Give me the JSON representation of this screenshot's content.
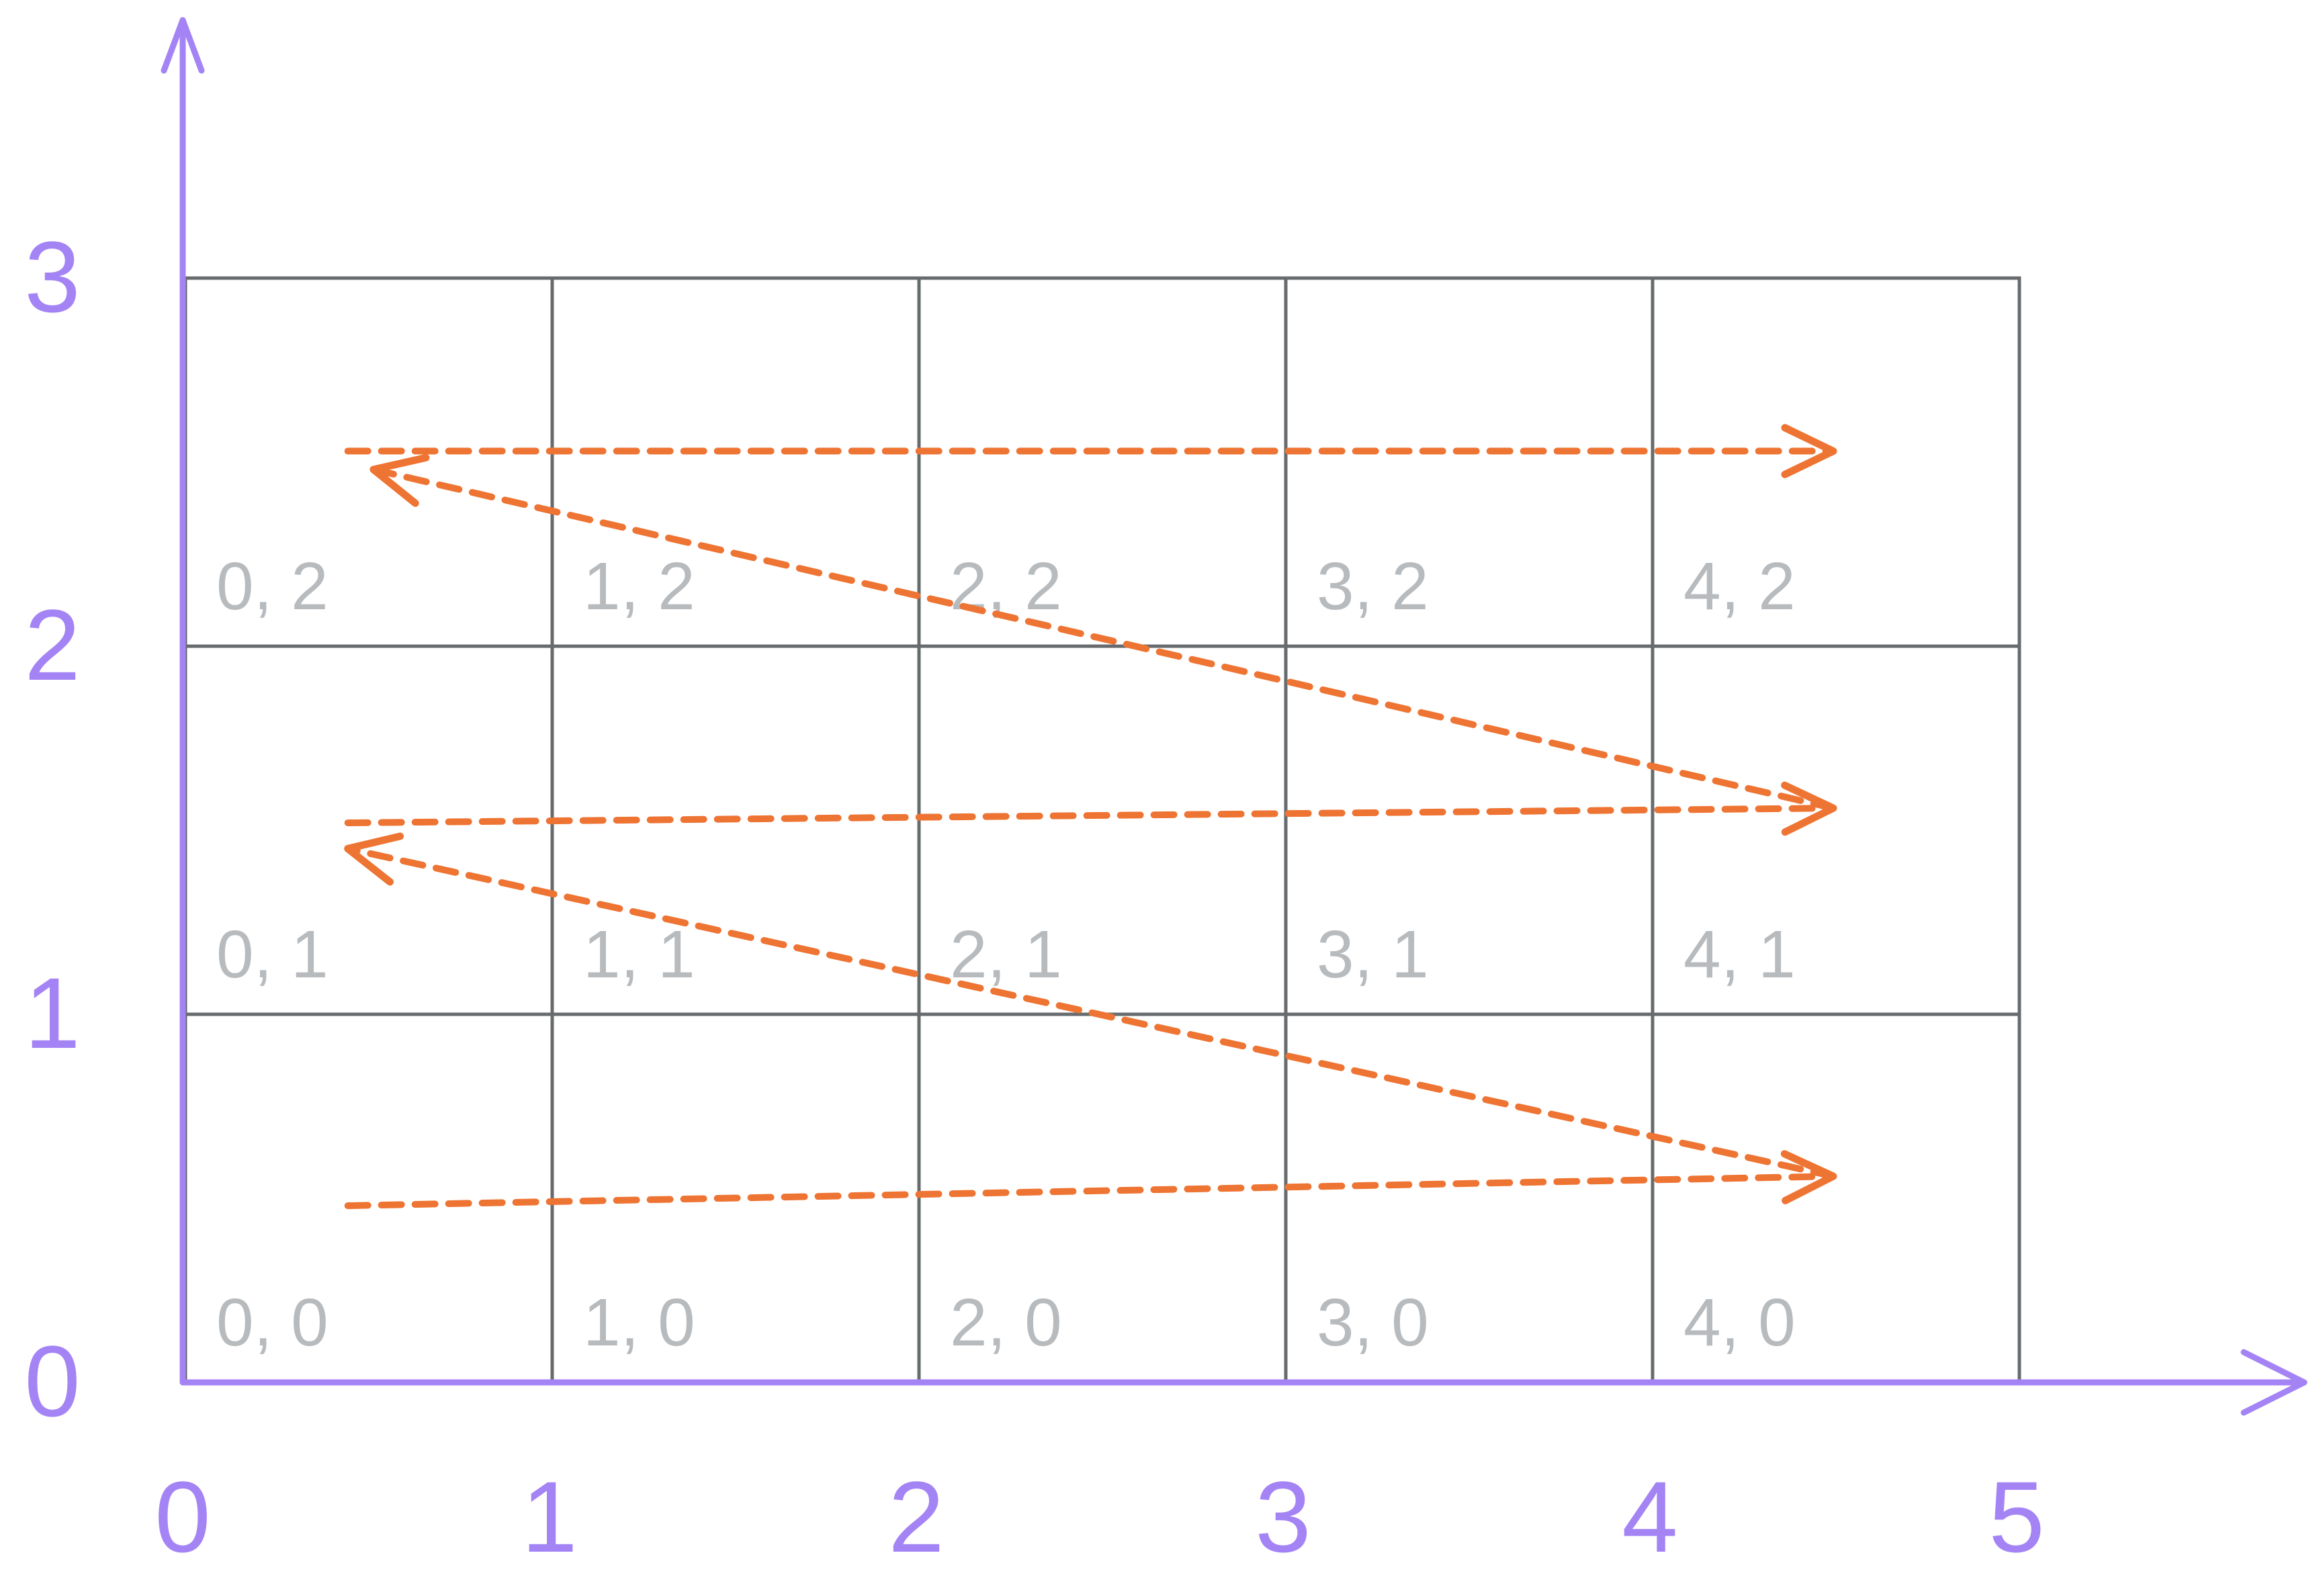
{
  "colors": {
    "axis": "#a484f5",
    "grid": "#676b6e",
    "cell_label": "#b8bbbe",
    "path": "#ee7433",
    "background": "#ffffff"
  },
  "grid": {
    "columns": 5,
    "rows": 3
  },
  "axes": {
    "x_ticks": [
      "0",
      "1",
      "2",
      "3",
      "4",
      "5"
    ],
    "y_ticks": [
      "0",
      "1",
      "2",
      "3"
    ]
  },
  "cells": [
    {
      "col": 0,
      "row": 0,
      "label": "0, 0"
    },
    {
      "col": 1,
      "row": 0,
      "label": "1, 0"
    },
    {
      "col": 2,
      "row": 0,
      "label": "2, 0"
    },
    {
      "col": 3,
      "row": 0,
      "label": "3, 0"
    },
    {
      "col": 4,
      "row": 0,
      "label": "4, 0"
    },
    {
      "col": 0,
      "row": 1,
      "label": "0, 1"
    },
    {
      "col": 1,
      "row": 1,
      "label": "1, 1"
    },
    {
      "col": 2,
      "row": 1,
      "label": "2, 1"
    },
    {
      "col": 3,
      "row": 1,
      "label": "3, 1"
    },
    {
      "col": 4,
      "row": 1,
      "label": "4, 1"
    },
    {
      "col": 0,
      "row": 2,
      "label": "0, 2"
    },
    {
      "col": 1,
      "row": 2,
      "label": "1, 2"
    },
    {
      "col": 2,
      "row": 2,
      "label": "2, 2"
    },
    {
      "col": 3,
      "row": 2,
      "label": "3, 2"
    },
    {
      "col": 4,
      "row": 2,
      "label": "4, 2"
    }
  ],
  "traversal": [
    {
      "from": [
        0.45,
        0.48
      ],
      "to": [
        4.5,
        0.56
      ],
      "kind": "row-sweep"
    },
    {
      "from": [
        4.5,
        0.56
      ],
      "to": [
        0.45,
        1.45
      ],
      "kind": "return"
    },
    {
      "from": [
        0.45,
        1.52
      ],
      "to": [
        4.5,
        1.56
      ],
      "kind": "row-sweep"
    },
    {
      "from": [
        4.5,
        1.56
      ],
      "to": [
        0.52,
        2.48
      ],
      "kind": "return"
    },
    {
      "from": [
        0.45,
        2.53
      ],
      "to": [
        4.5,
        2.53
      ],
      "kind": "row-sweep"
    }
  ]
}
